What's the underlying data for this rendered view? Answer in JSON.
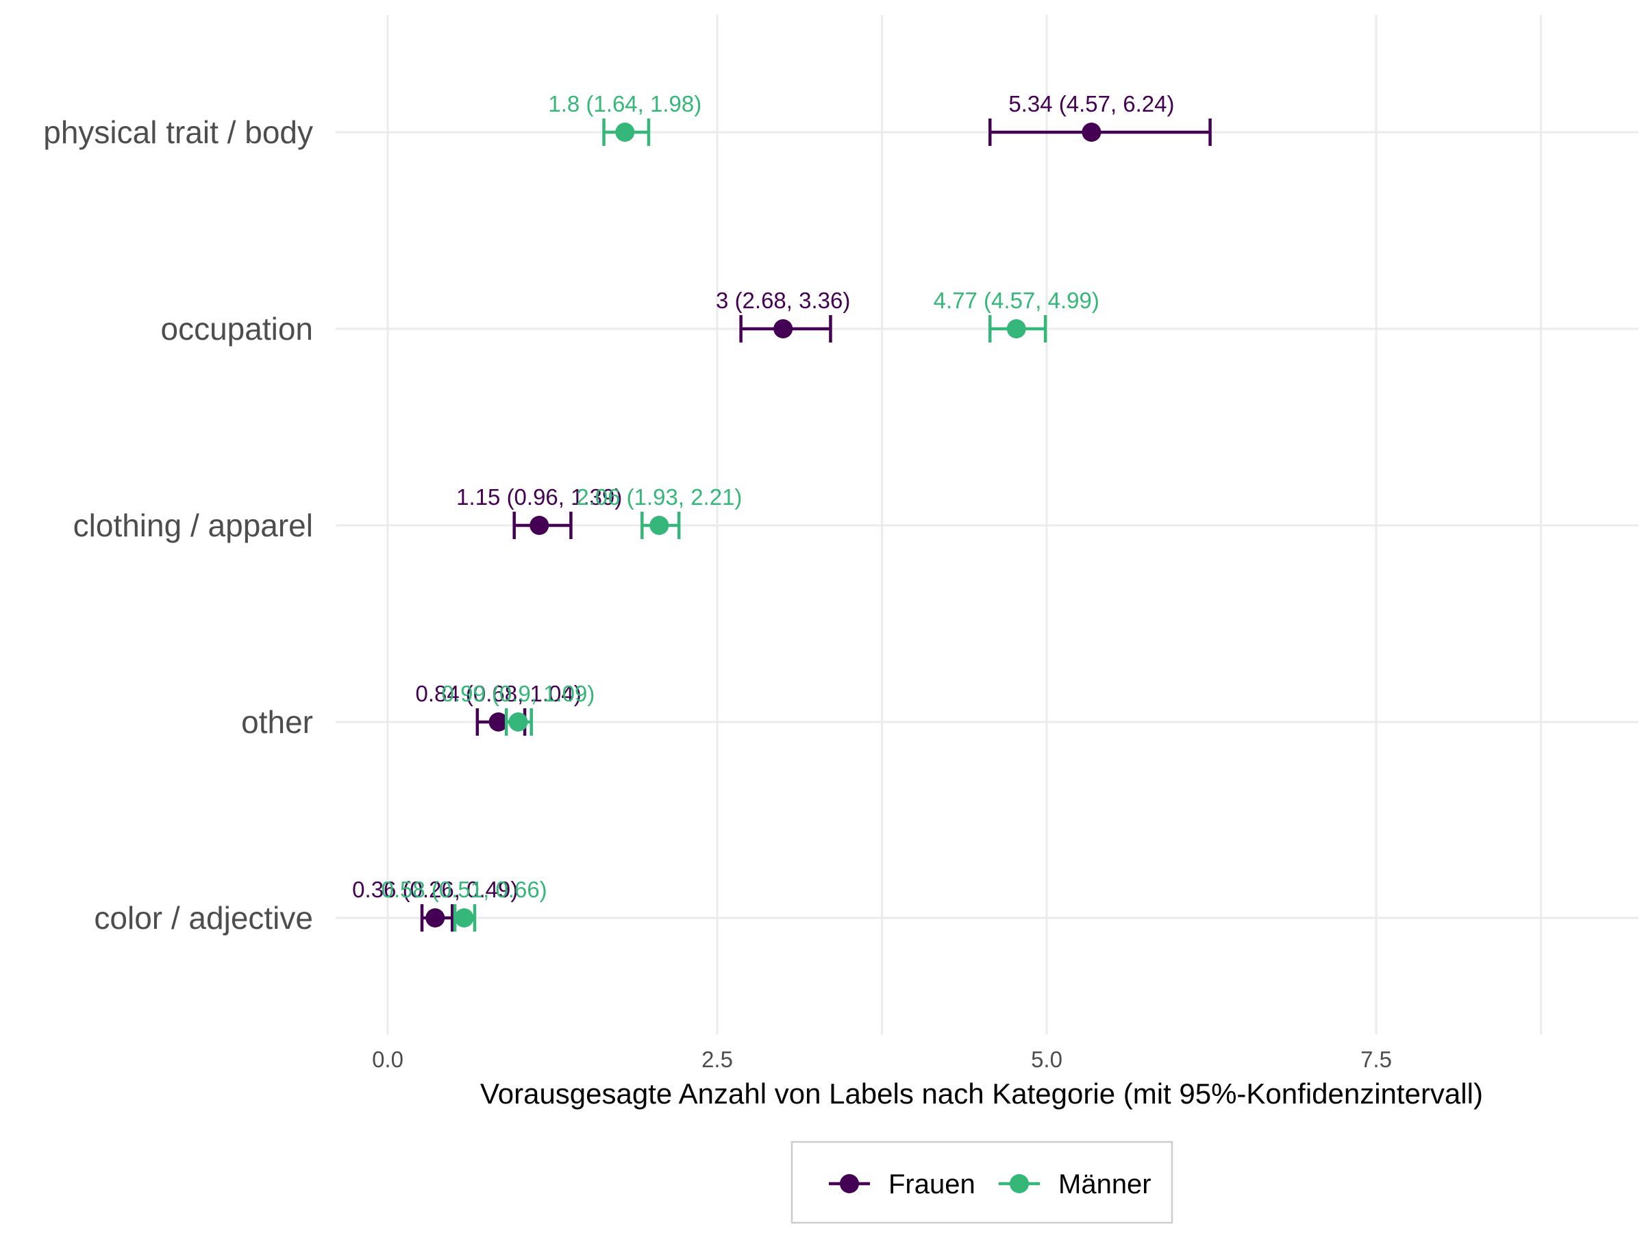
{
  "chart_data": {
    "type": "dot-errorbar",
    "xlabel": "Vorausgesagte Anzahl von Labels nach Kategorie (mit 95%-Konfidenzintervall)",
    "ylabel": "",
    "xlim": [
      -0.45,
      9.3
    ],
    "x_ticks": [
      0.0,
      2.5,
      5.0,
      7.5
    ],
    "x_tick_labels": [
      "0.0",
      "2.5",
      "5.0",
      "7.5"
    ],
    "x_minor_gridlines": [
      3.75,
      8.75
    ],
    "grid": true,
    "legend_position": "bottom",
    "categories": [
      "physical trait / body",
      "occupation",
      "clothing / apparel",
      "other",
      "color / adjective"
    ],
    "series": [
      {
        "name": "Frauen",
        "color": "#440154",
        "points": [
          {
            "category": "physical trait / body",
            "value": 5.34,
            "lower": 4.57,
            "upper": 6.24,
            "label": "5.34 (4.57, 6.24)"
          },
          {
            "category": "occupation",
            "value": 3.0,
            "lower": 2.68,
            "upper": 3.36,
            "label": "3 (2.68, 3.36)"
          },
          {
            "category": "clothing / apparel",
            "value": 1.15,
            "lower": 0.96,
            "upper": 1.39,
            "label": "1.15 (0.96, 1.39)"
          },
          {
            "category": "other",
            "value": 0.84,
            "lower": 0.68,
            "upper": 1.04,
            "label": "0.84 (0.68, 1.04)"
          },
          {
            "category": "color / adjective",
            "value": 0.36,
            "lower": 0.26,
            "upper": 0.49,
            "label": "0.36 (0.26, 0.49)"
          }
        ]
      },
      {
        "name": "Männer",
        "color": "#35b779",
        "points": [
          {
            "category": "physical trait / body",
            "value": 1.8,
            "lower": 1.64,
            "upper": 1.98,
            "label": "1.8 (1.64, 1.98)"
          },
          {
            "category": "occupation",
            "value": 4.77,
            "lower": 4.57,
            "upper": 4.99,
            "label": "4.77 (4.57, 4.99)"
          },
          {
            "category": "clothing / apparel",
            "value": 2.06,
            "lower": 1.93,
            "upper": 2.21,
            "label": "2.06 (1.93, 2.21)"
          },
          {
            "category": "other",
            "value": 0.99,
            "lower": 0.9,
            "upper": 1.09,
            "label": "0.99 (0.9, 1.09)"
          },
          {
            "category": "color / adjective",
            "value": 0.58,
            "lower": 0.51,
            "upper": 0.66,
            "label": "0.58 (0.51, 0.66)"
          }
        ]
      }
    ]
  }
}
